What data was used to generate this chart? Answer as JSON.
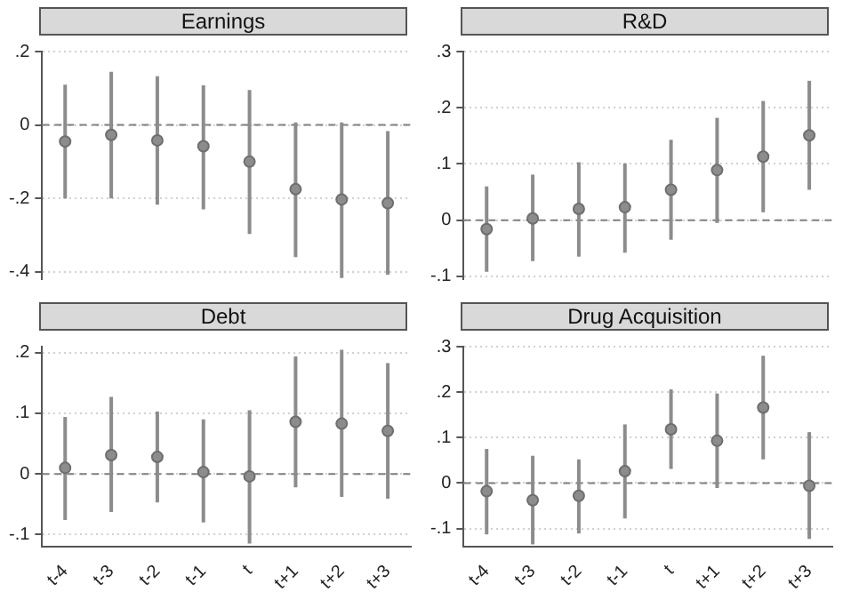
{
  "chart_data": [
    {
      "type": "scatter",
      "title": "Earnings",
      "categories": [
        null,
        null,
        null,
        null,
        null,
        null,
        null,
        null
      ],
      "series": [
        {
          "color": "#8c8c8c",
          "values": [
            -0.045,
            -0.027,
            -0.042,
            -0.058,
            -0.1,
            -0.175,
            -0.203,
            -0.213
          ],
          "errors": [
            [
              -0.2,
              0.11
            ],
            [
              -0.2,
              0.145
            ],
            [
              -0.217,
              0.133
            ],
            [
              -0.23,
              0.108
            ],
            [
              -0.297,
              0.095
            ],
            [
              -0.36,
              0.007
            ],
            [
              -0.417,
              0.007
            ],
            [
              -0.408,
              -0.017
            ]
          ]
        }
      ],
      "ylim": [
        -0.42,
        0.2
      ],
      "yticks": [
        {
          "value": -0.4,
          "label": "-.4"
        },
        {
          "value": -0.2,
          "label": "-.2"
        },
        {
          "value": 0,
          "label": "0"
        },
        {
          "value": 0.2,
          "label": ".2"
        }
      ],
      "grid": "y",
      "marker": "circle",
      "tick_labels": "y",
      "ref_lines": [
        {
          "axis": "y",
          "value": 0,
          "line_style": "dashed",
          "color": "#808080"
        }
      ]
    },
    {
      "type": "scatter",
      "title": "R&D",
      "categories": [
        null,
        null,
        null,
        null,
        null,
        null,
        null,
        null
      ],
      "series": [
        {
          "color": "#8c8c8c",
          "values": [
            -0.016,
            0.003,
            0.02,
            0.023,
            0.054,
            0.089,
            0.113,
            0.151
          ],
          "errors": [
            [
              -0.092,
              0.06
            ],
            [
              -0.073,
              0.081
            ],
            [
              -0.065,
              0.103
            ],
            [
              -0.058,
              0.101
            ],
            [
              -0.035,
              0.143
            ],
            [
              -0.005,
              0.182
            ],
            [
              0.014,
              0.212
            ],
            [
              0.054,
              0.248
            ]
          ]
        }
      ],
      "ylim": [
        -0.105,
        0.3
      ],
      "yticks": [
        {
          "value": -0.1,
          "label": "-.1"
        },
        {
          "value": 0,
          "label": "0"
        },
        {
          "value": 0.1,
          "label": ".1"
        },
        {
          "value": 0.2,
          "label": ".2"
        },
        {
          "value": 0.3,
          "label": ".3"
        }
      ],
      "grid": "y",
      "marker": "circle",
      "tick_labels": "y",
      "ref_lines": [
        {
          "axis": "y",
          "value": 0,
          "line_style": "dashed",
          "color": "#808080"
        }
      ]
    },
    {
      "type": "scatter",
      "title": "Debt",
      "categories": [
        "t-4",
        "t-3",
        "t-2",
        "t-1",
        "t",
        "t+1",
        "t+2",
        "t+3"
      ],
      "series": [
        {
          "color": "#8c8c8c",
          "values": [
            0.01,
            0.031,
            0.028,
            0.003,
            -0.004,
            0.086,
            0.083,
            0.071
          ],
          "errors": [
            [
              -0.076,
              0.094
            ],
            [
              -0.063,
              0.127
            ],
            [
              -0.047,
              0.103
            ],
            [
              -0.08,
              0.09
            ],
            [
              -0.115,
              0.105
            ],
            [
              -0.022,
              0.194
            ],
            [
              -0.038,
              0.205
            ],
            [
              -0.041,
              0.183
            ]
          ]
        }
      ],
      "ylim": [
        -0.12,
        0.21
      ],
      "yticks": [
        {
          "value": -0.1,
          "label": "-.1"
        },
        {
          "value": 0,
          "label": "0"
        },
        {
          "value": 0.1,
          "label": ".1"
        },
        {
          "value": 0.2,
          "label": ".2"
        }
      ],
      "grid": "y",
      "marker": "circle",
      "ref_lines": [
        {
          "axis": "y",
          "value": 0,
          "line_style": "dashed",
          "color": "#808080"
        }
      ]
    },
    {
      "type": "scatter",
      "title": "Drug Acquisition",
      "categories": [
        "t-4",
        "t-3",
        "t-2",
        "t-1",
        "t",
        "t+1",
        "t+2",
        "t+3"
      ],
      "series": [
        {
          "color": "#8c8c8c",
          "values": [
            -0.018,
            -0.038,
            -0.028,
            0.026,
            0.118,
            0.093,
            0.166,
            -0.006
          ],
          "errors": [
            [
              -0.113,
              0.075
            ],
            [
              -0.135,
              0.06
            ],
            [
              -0.111,
              0.052
            ],
            [
              -0.078,
              0.129
            ],
            [
              0.031,
              0.206
            ],
            [
              -0.011,
              0.197
            ],
            [
              0.052,
              0.28
            ],
            [
              -0.123,
              0.112
            ]
          ]
        }
      ],
      "ylim": [
        -0.14,
        0.3
      ],
      "yticks": [
        {
          "value": -0.1,
          "label": "-.1"
        },
        {
          "value": 0,
          "label": "0"
        },
        {
          "value": 0.1,
          "label": ".1"
        },
        {
          "value": 0.2,
          "label": ".2"
        },
        {
          "value": 0.3,
          "label": ".3"
        }
      ],
      "grid": "y",
      "marker": "circle",
      "ref_lines": [
        {
          "axis": "y",
          "value": 0,
          "line_style": "dashed",
          "color": "#808080"
        }
      ]
    }
  ]
}
